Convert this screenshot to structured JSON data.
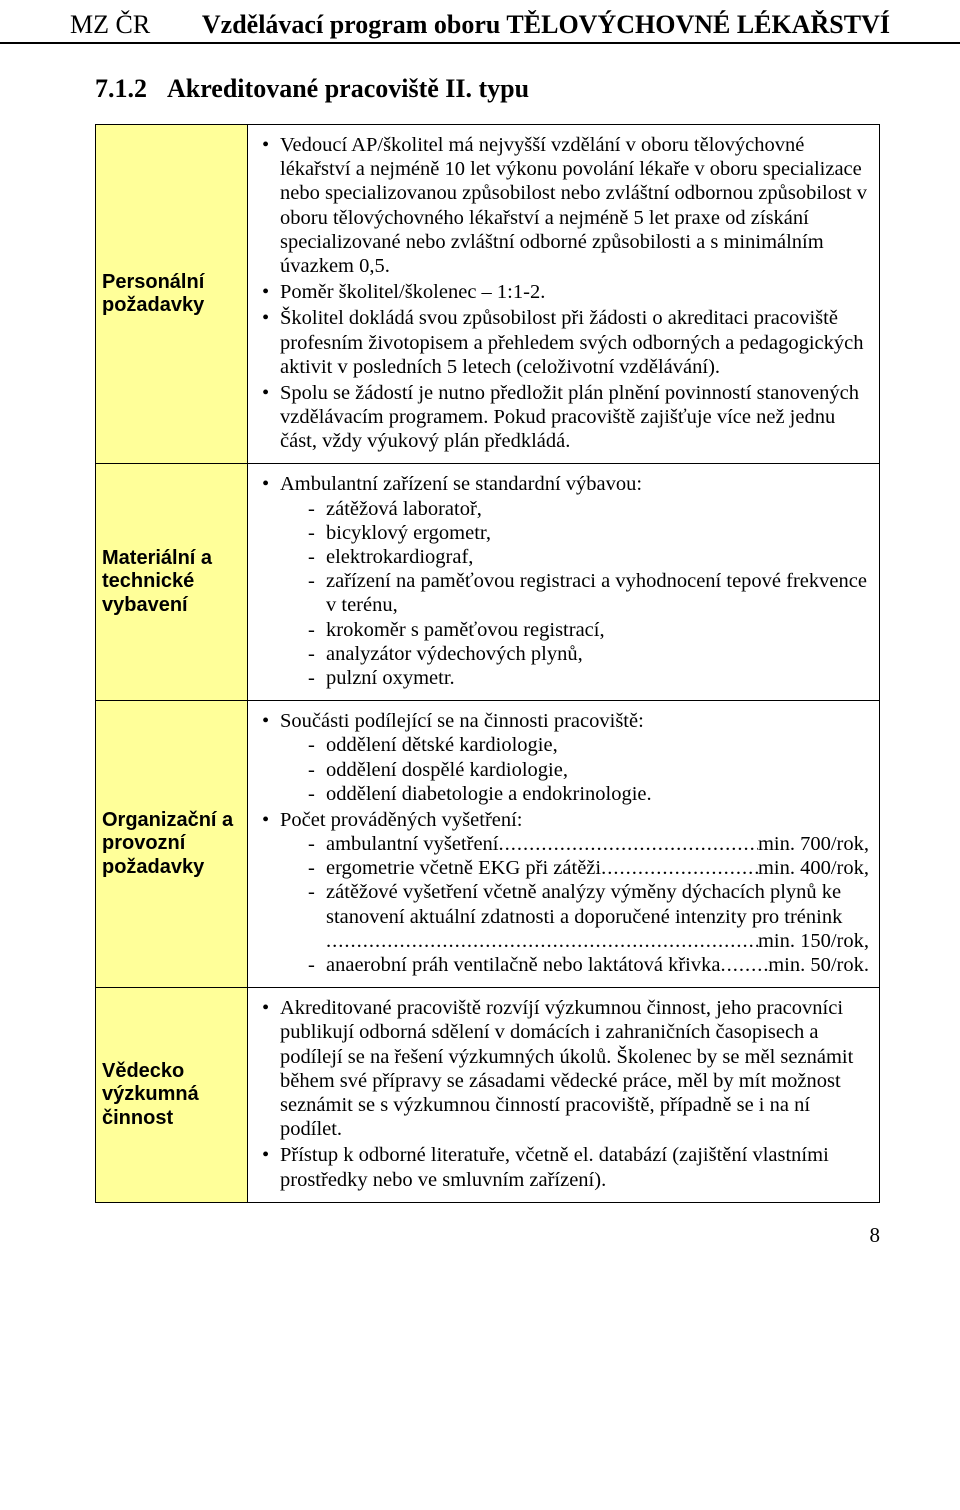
{
  "header": {
    "left": "MZ ČR",
    "right": "Vzdělávací program oboru TĚLOVÝCHOVNÉ LÉKAŘSTVÍ"
  },
  "section": {
    "number": "7.1.2",
    "title": "Akreditované pracoviště II. typu"
  },
  "rows": {
    "personal": {
      "label": "Personální požadavky",
      "items": [
        "Vedoucí AP/školitel má nejvyšší vzdělání v oboru tělovýchovné lékařství a nejméně 10 let výkonu povolání lékaře v oboru specializace nebo specializovanou způsobilost nebo zvláštní odbornou způsobilost v oboru tělovýchovného lékařství a nejméně 5 let praxe od získání specializované nebo zvláštní odborné způsobilosti a s minimálním úvazkem 0,5.",
        "Poměr školitel/školenec – 1:1-2.",
        "Školitel dokládá svou způsobilost při žádosti o akreditaci pracoviště profesním životopisem a přehledem svých odborných a pedagogických aktivit v posledních 5 letech (celoživotní vzdělávání).",
        "Spolu se žádostí je nutno předložit plán plnění povinností stanovených vzdělávacím programem. Pokud pracoviště zajišťuje více než jednu část, vždy výukový plán předkládá."
      ]
    },
    "material": {
      "label": "Materiální a technické vybavení",
      "lead": "Ambulantní zařízení se standardní výbavou:",
      "items": [
        "zátěžová laboratoř,",
        "bicyklový ergometr,",
        "elektrokardiograf,",
        "zařízení na paměťovou registraci a vyhodnocení tepové frekvence v terénu,",
        "krokoměr s paměťovou registrací,",
        "analyzátor výdechových plynů,",
        "pulzní oxymetr."
      ]
    },
    "org": {
      "label": "Organizační a provozní požadavky",
      "group1_lead": "Součásti podílející se na činnosti pracoviště:",
      "group1_items": [
        "oddělení dětské kardiologie,",
        "oddělení dospělé kardiologie,",
        "oddělení diabetologie a endokrinologie."
      ],
      "group2_lead": "Počet prováděných vyšetření:",
      "leader1_a": "ambulantní vyšetření",
      "leader1_b": "min. 700/rok,",
      "leader2_a": "ergometrie včetně EKG při zátěži",
      "leader2_b": "min. 400/rok,",
      "plain3": "zátěžové vyšetření včetně analýzy výměny dýchacích plynů ke stanovení aktuální zdatnosti a doporučené intenzity pro trénink",
      "leader3_b": "min. 150/rok,",
      "leader4_a": "anaerobní práh ventilačně nebo laktátová křivka",
      "leader4_b": "min. 50/rok."
    },
    "science": {
      "label": "Vědecko výzkumná činnost",
      "items": [
        "Akreditované pracoviště rozvíjí výzkumnou činnost, jeho pracovníci publikují odborná sdělení v domácích i zahraničních časopisech a podílejí se na řešení výzkumných úkolů. Školenec by se měl seznámit během své přípravy se zásadami vědecké práce, měl by mít možnost seznámit se s výzkumnou činností pracoviště, případně se i na ní podílet.",
        "Přístup k odborné literatuře, včetně el. databází (zajištění vlastními prostředky nebo ve smluvním zařízení)."
      ]
    }
  },
  "footer": {
    "page": "8"
  },
  "colors": {
    "label_bg": "#ffff99",
    "border": "#000000",
    "text": "#000000",
    "page_bg": "#ffffff"
  },
  "fonts": {
    "body_family": "Times New Roman",
    "label_family": "Arial",
    "body_size_pt": 15,
    "header_size_pt": 19
  }
}
